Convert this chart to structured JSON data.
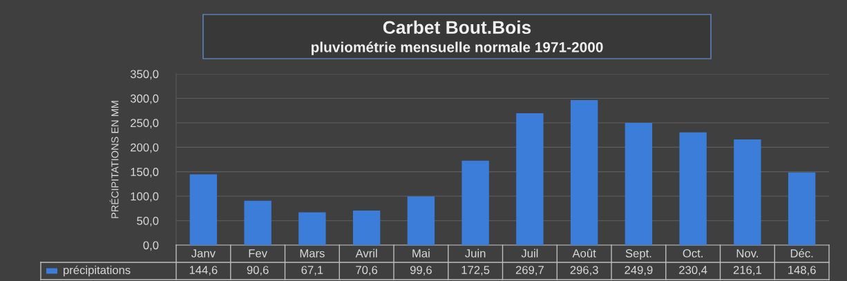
{
  "chart_data": {
    "type": "bar",
    "title": "Carbet Bout.Bois",
    "subtitle": "pluviométrie mensuelle normale 1971-2000",
    "ylabel": "PRÉCIPITATIONS EN MM",
    "categories": [
      "Janv",
      "Fev",
      "Mars",
      "Avril",
      "Mai",
      "Juin",
      "Juil",
      "Août",
      "Sept.",
      "Oct.",
      "Nov.",
      "Déc."
    ],
    "series": [
      {
        "name": "précipitations",
        "color": "#3b7dd8",
        "values": [
          144.6,
          90.6,
          67.1,
          70.6,
          99.6,
          172.5,
          269.7,
          296.3,
          249.9,
          230.4,
          216.1,
          148.6
        ],
        "value_labels": [
          "144,6",
          "90,6",
          "67,1",
          "70,6",
          "99,6",
          "172,5",
          "269,7",
          "296,3",
          "249,9",
          "230,4",
          "216,1",
          "148,6"
        ]
      }
    ],
    "ylim": [
      0,
      350
    ],
    "yticks": [
      {
        "value": 0,
        "label": "0,0"
      },
      {
        "value": 50,
        "label": "50,0"
      },
      {
        "value": 100,
        "label": "100,0"
      },
      {
        "value": 150,
        "label": "150,0"
      },
      {
        "value": 200,
        "label": "200,0"
      },
      {
        "value": 250,
        "label": "250,0"
      },
      {
        "value": 300,
        "label": "300,0"
      },
      {
        "value": 350,
        "label": "350,0"
      }
    ],
    "grid": "y",
    "legend": "bottom left"
  }
}
